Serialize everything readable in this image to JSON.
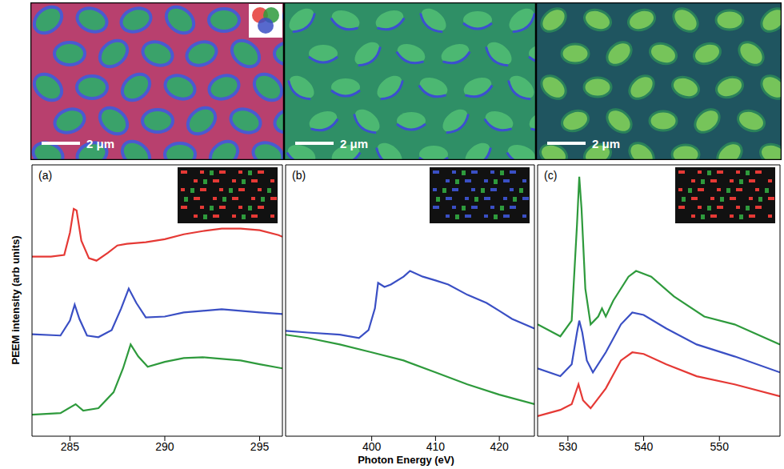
{
  "chart_data": [
    {
      "type": "line",
      "label": "(a)",
      "scale_bar": "2 μm",
      "xlim": [
        283,
        296.2
      ],
      "xticks": [
        285,
        290,
        295
      ],
      "ylim": [
        0,
        100
      ],
      "tick_labels": "x",
      "series": [
        {
          "color": "#e53935",
          "x": [
            283,
            284,
            284.7,
            285,
            285.2,
            285.35,
            285.6,
            286,
            286.4,
            287,
            287.5,
            288,
            288.5,
            289,
            290,
            291,
            292,
            293,
            294,
            295,
            296,
            296.2
          ],
          "values": [
            66.2,
            66.2,
            66.8,
            75.0,
            83.8,
            83.2,
            72.1,
            65.6,
            64.7,
            67.6,
            70.3,
            70.9,
            71.2,
            71.5,
            72.6,
            74.4,
            75.6,
            76.5,
            76.5,
            75.9,
            74.1,
            73.5
          ]
        },
        {
          "color": "#3a4fc4",
          "x": [
            283,
            284.5,
            285,
            285.25,
            285.5,
            285.9,
            286.5,
            287.2,
            287.7,
            288.1,
            288.5,
            289,
            290,
            291,
            292,
            293,
            294,
            295,
            296.2
          ],
          "values": [
            37.6,
            37.1,
            42.6,
            48.5,
            43.2,
            37.1,
            36.5,
            39.1,
            47.1,
            54.4,
            49.1,
            43.8,
            44.1,
            45.6,
            46.2,
            46.8,
            46.2,
            45.6,
            45.0
          ]
        },
        {
          "color": "#2e9a3c",
          "x": [
            283,
            284.5,
            285.3,
            285.7,
            286.5,
            287.3,
            287.8,
            288.2,
            288.6,
            289.1,
            290,
            291,
            292,
            293,
            294,
            295,
            296.2
          ],
          "values": [
            7.9,
            8.5,
            11.8,
            9.4,
            10.3,
            16.2,
            25.0,
            33.8,
            29.4,
            25.6,
            27.4,
            28.8,
            29.1,
            28.5,
            27.9,
            26.5,
            25.0
          ]
        }
      ]
    },
    {
      "type": "line",
      "label": "(b)",
      "scale_bar": "2 μm",
      "xlim": [
        386.5,
        425.5
      ],
      "xticks": [
        400,
        410,
        420
      ],
      "ylim": [
        0,
        100
      ],
      "tick_labels": "x",
      "series": [
        {
          "color": "#3a4fc4",
          "x": [
            386.5,
            390,
            395,
            398,
            399.5,
            400.5,
            401,
            402,
            403,
            405,
            406,
            408,
            410,
            412,
            415,
            418,
            420,
            422,
            425.5
          ],
          "values": [
            38.8,
            38.2,
            37.4,
            36.2,
            39.1,
            47.1,
            56.5,
            55.0,
            55.9,
            58.8,
            60.9,
            58.8,
            57.4,
            55.9,
            52.1,
            49.1,
            46.2,
            43.2,
            39.7
          ]
        },
        {
          "color": "#2e9a3c",
          "x": [
            386.5,
            390,
            395,
            400,
            405,
            410,
            415,
            420,
            425.5
          ],
          "values": [
            37.4,
            36.2,
            33.8,
            30.9,
            27.9,
            23.5,
            19.1,
            15.3,
            11.8
          ]
        }
      ]
    },
    {
      "type": "line",
      "label": "(c)",
      "scale_bar": "2 μm",
      "xlim": [
        526,
        558
      ],
      "xticks": [
        530,
        540,
        550
      ],
      "ylim": [
        0,
        100
      ],
      "tick_labels": "x",
      "series": [
        {
          "color": "#2e9a3c",
          "x": [
            526,
            529,
            530.5,
            531.2,
            531.5,
            531.8,
            532.3,
            533,
            534,
            534.5,
            535,
            536,
            538,
            539,
            541,
            544,
            548,
            552,
            558
          ],
          "values": [
            41.2,
            36.8,
            42.6,
            77.9,
            95.6,
            83.8,
            54.4,
            41.2,
            44.1,
            47.1,
            44.1,
            50.0,
            58.8,
            60.9,
            58.8,
            51.5,
            44.1,
            41.2,
            33.8
          ]
        },
        {
          "color": "#3a4fc4",
          "x": [
            526,
            529,
            530.5,
            531.2,
            531.5,
            531.9,
            532.5,
            533.3,
            535,
            537,
            538.5,
            540,
            543,
            547,
            552,
            558
          ],
          "values": [
            25.0,
            22.1,
            26.5,
            38.2,
            42.6,
            38.2,
            27.9,
            23.5,
            30.9,
            41.2,
            45.6,
            44.7,
            39.7,
            33.8,
            29.4,
            23.5
          ]
        },
        {
          "color": "#e53935",
          "x": [
            526,
            529,
            530.5,
            531.4,
            532,
            533,
            535,
            537,
            538.5,
            540,
            543,
            547,
            552,
            558
          ],
          "values": [
            7.4,
            9.7,
            11.8,
            19.1,
            13.2,
            10.3,
            17.6,
            27.9,
            30.9,
            30.3,
            26.5,
            22.1,
            19.1,
            14.7
          ]
        }
      ]
    }
  ],
  "x_label": "Photon Energy (eV)",
  "y_label": "PEEM intensity (arb units)"
}
